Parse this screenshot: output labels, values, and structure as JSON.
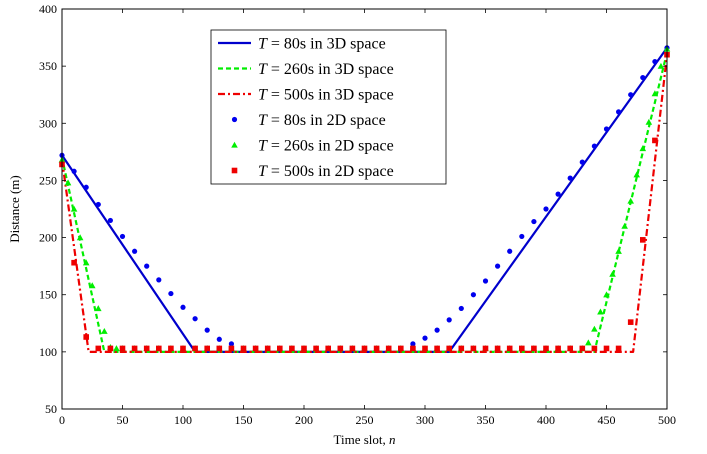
{
  "chart_data": {
    "type": "line",
    "xlabel": "Time slot, n",
    "ylabel": "Distance (m)",
    "xlim": [
      0,
      500
    ],
    "ylim": [
      50,
      400
    ],
    "xticks": [
      0,
      50,
      100,
      150,
      200,
      250,
      300,
      350,
      400,
      450,
      500
    ],
    "yticks": [
      50,
      100,
      150,
      200,
      250,
      300,
      350,
      400
    ],
    "grid": false,
    "legend_position": "top-center",
    "series": [
      {
        "name": "T = 80s in 3D space",
        "style": "solid-line",
        "color": "#0000cc",
        "x": [
          0,
          110,
          320,
          500
        ],
        "y": [
          272,
          100,
          100,
          366
        ]
      },
      {
        "name": "T = 260s in 3D space",
        "style": "dashed-line",
        "color": "#00ee00",
        "x": [
          0,
          35,
          440,
          500
        ],
        "y": [
          270,
          100,
          100,
          362
        ]
      },
      {
        "name": "T = 500s in 3D space",
        "style": "dash-dot-line",
        "color": "#ee0000",
        "x": [
          0,
          22,
          472,
          500
        ],
        "y": [
          268,
          100,
          100,
          360
        ]
      },
      {
        "name": "T = 80s in 2D space",
        "style": "circle-marker",
        "color": "#0000ee",
        "x": [
          0,
          10,
          20,
          30,
          40,
          50,
          60,
          70,
          80,
          90,
          100,
          110,
          120,
          130,
          140,
          150,
          160,
          170,
          180,
          190,
          200,
          210,
          220,
          230,
          240,
          250,
          260,
          270,
          280,
          290,
          300,
          310,
          320,
          330,
          340,
          350,
          360,
          370,
          380,
          390,
          400,
          410,
          420,
          430,
          440,
          450,
          460,
          470,
          480,
          490,
          500
        ],
        "y": [
          272,
          258,
          244,
          229,
          215,
          201,
          188,
          175,
          163,
          151,
          139,
          129,
          119,
          111,
          107,
          103,
          103,
          103,
          103,
          103,
          103,
          103,
          103,
          103,
          103,
          103,
          103,
          103,
          103,
          107,
          112,
          119,
          128,
          138,
          150,
          162,
          175,
          188,
          201,
          214,
          225,
          238,
          252,
          266,
          280,
          295,
          310,
          325,
          340,
          354,
          366
        ]
      },
      {
        "name": "T = 260s in 2D space",
        "style": "triangle-marker",
        "color": "#00ee00",
        "x": [
          0,
          5,
          10,
          15,
          20,
          25,
          30,
          35,
          40,
          45,
          50,
          60,
          70,
          80,
          90,
          100,
          110,
          120,
          130,
          140,
          150,
          160,
          170,
          180,
          190,
          200,
          210,
          220,
          230,
          240,
          250,
          260,
          270,
          280,
          290,
          300,
          310,
          320,
          330,
          340,
          350,
          360,
          370,
          380,
          390,
          400,
          410,
          420,
          430,
          435,
          440,
          445,
          450,
          455,
          460,
          465,
          470,
          475,
          480,
          485,
          490,
          495,
          500
        ],
        "y": [
          268,
          248,
          225,
          200,
          178,
          158,
          138,
          118,
          104,
          103,
          103,
          103,
          103,
          103,
          103,
          103,
          103,
          103,
          103,
          103,
          103,
          103,
          103,
          103,
          103,
          103,
          103,
          103,
          103,
          103,
          103,
          103,
          103,
          103,
          103,
          103,
          103,
          103,
          103,
          103,
          103,
          103,
          103,
          103,
          103,
          103,
          103,
          103,
          103,
          108,
          120,
          135,
          150,
          168,
          188,
          210,
          232,
          255,
          278,
          301,
          326,
          350,
          365
        ]
      },
      {
        "name": "T = 500s in 2D space",
        "style": "square-marker",
        "color": "#ee0000",
        "x": [
          0,
          10,
          20,
          30,
          40,
          50,
          60,
          70,
          80,
          90,
          100,
          110,
          120,
          130,
          140,
          150,
          160,
          170,
          180,
          190,
          200,
          210,
          220,
          230,
          240,
          250,
          260,
          270,
          280,
          290,
          300,
          310,
          320,
          330,
          340,
          350,
          360,
          370,
          380,
          390,
          400,
          410,
          420,
          430,
          440,
          450,
          460,
          470,
          480,
          490,
          500
        ],
        "y": [
          264,
          178,
          113,
          103,
          103,
          103,
          103,
          103,
          103,
          103,
          103,
          103,
          103,
          103,
          103,
          103,
          103,
          103,
          103,
          103,
          103,
          103,
          103,
          103,
          103,
          103,
          103,
          103,
          103,
          103,
          103,
          103,
          103,
          103,
          103,
          103,
          103,
          103,
          103,
          103,
          103,
          103,
          103,
          103,
          103,
          103,
          103,
          126,
          198,
          285,
          360
        ]
      }
    ]
  }
}
